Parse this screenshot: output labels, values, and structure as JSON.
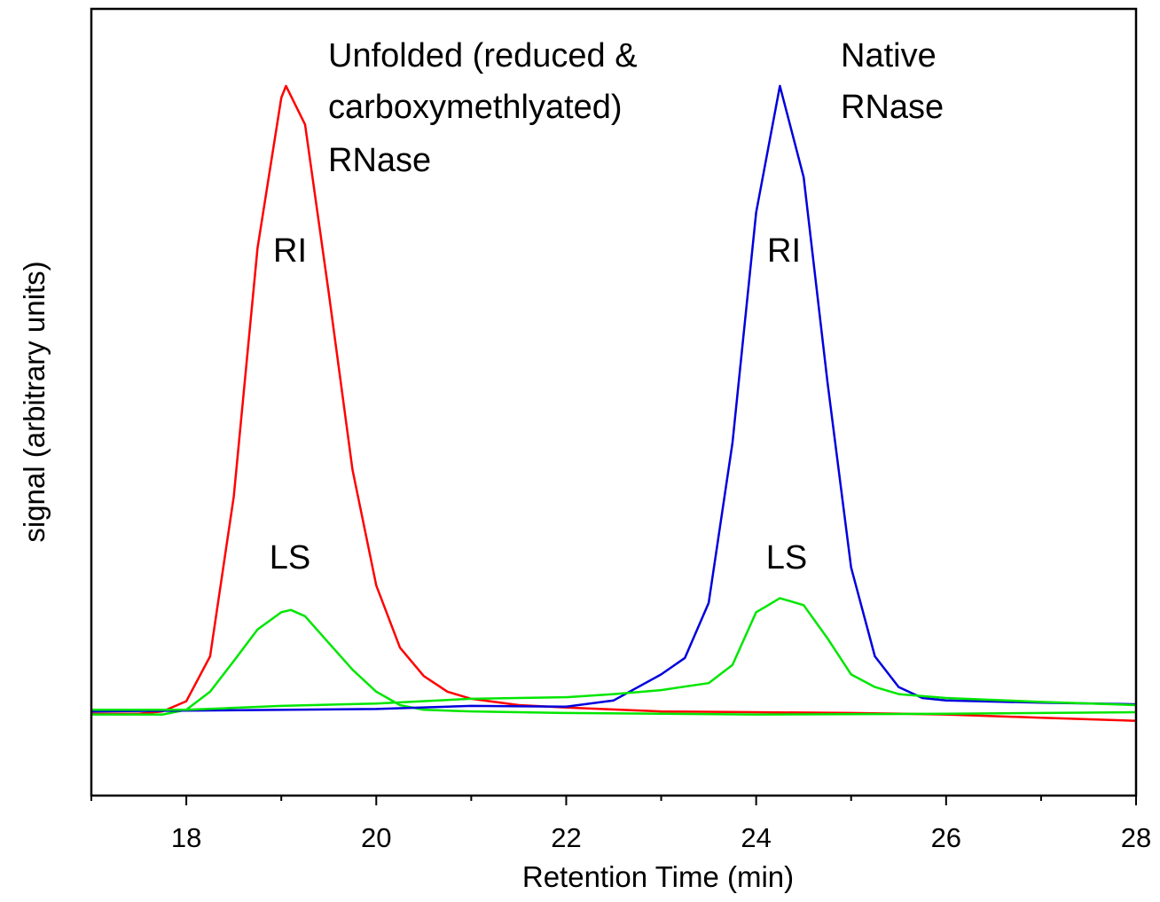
{
  "chart_data": {
    "type": "line",
    "xlabel": "Retention Time (min)",
    "ylabel": "signal (arbitrary units)",
    "xlim": [
      17,
      28
    ],
    "ylim": [
      0,
      100
    ],
    "xticks": [
      18,
      20,
      22,
      24,
      26,
      28
    ],
    "xminor_ticks": [
      17,
      19,
      21,
      23,
      25,
      27
    ],
    "annotations": [
      "Unfolded (reduced &",
      "carboxymethlyated)",
      "RNase",
      "Native",
      "RNase",
      "RI",
      "LS",
      "RI",
      "LS"
    ],
    "series": [
      {
        "color": "#ff0000",
        "x": [
          17,
          17.5,
          17.75,
          18,
          18.25,
          18.5,
          18.75,
          19,
          19.05,
          19.25,
          19.5,
          19.75,
          20,
          20.25,
          20.5,
          20.75,
          21,
          21.5,
          22,
          23,
          24,
          25,
          26,
          27,
          28
        ],
        "values": [
          10.4,
          10.4,
          10.7,
          12.0,
          17.7,
          38.0,
          69.6,
          88.7,
          90.2,
          85.3,
          63.9,
          41.4,
          26.7,
          18.8,
          15.2,
          13.2,
          12.3,
          11.5,
          11.2,
          10.7,
          10.6,
          10.5,
          10.3,
          9.9,
          9.5
        ]
      },
      {
        "color": "#00e600",
        "x": [
          17,
          17.75,
          18,
          18.25,
          18.5,
          18.75,
          19,
          19.1,
          19.25,
          19.5,
          19.75,
          20,
          20.25,
          20.5,
          21,
          22,
          24,
          26,
          28
        ],
        "values": [
          10.3,
          10.3,
          10.9,
          13.2,
          17.1,
          21.1,
          23.3,
          23.6,
          22.8,
          19.4,
          16.0,
          13.2,
          11.5,
          10.9,
          10.7,
          10.5,
          10.3,
          10.4,
          10.6
        ]
      },
      {
        "color": "#0000dd",
        "x": [
          17,
          20,
          21,
          22,
          22.5,
          23,
          23.25,
          23.5,
          23.75,
          24,
          24.25,
          24.5,
          24.75,
          25,
          25.25,
          25.5,
          25.75,
          26,
          27,
          28
        ],
        "values": [
          10.7,
          11.0,
          11.4,
          11.3,
          12.1,
          15.4,
          17.5,
          24.5,
          44.8,
          74.1,
          90.2,
          78.6,
          52.6,
          29.0,
          17.7,
          13.8,
          12.4,
          12.1,
          11.8,
          11.6
        ]
      },
      {
        "color": "#00e600",
        "x": [
          17,
          18,
          19,
          20,
          21,
          22,
          22.5,
          23,
          23.5,
          23.75,
          24,
          24.1,
          24.25,
          24.5,
          24.75,
          25,
          25.25,
          25.5,
          26,
          27,
          28
        ],
        "values": [
          10.9,
          10.9,
          11.4,
          11.7,
          12.3,
          12.5,
          12.9,
          13.4,
          14.3,
          16.6,
          23.3,
          24.0,
          25.1,
          24.2,
          20.0,
          15.4,
          13.8,
          12.9,
          12.4,
          11.9,
          11.5
        ]
      }
    ]
  }
}
